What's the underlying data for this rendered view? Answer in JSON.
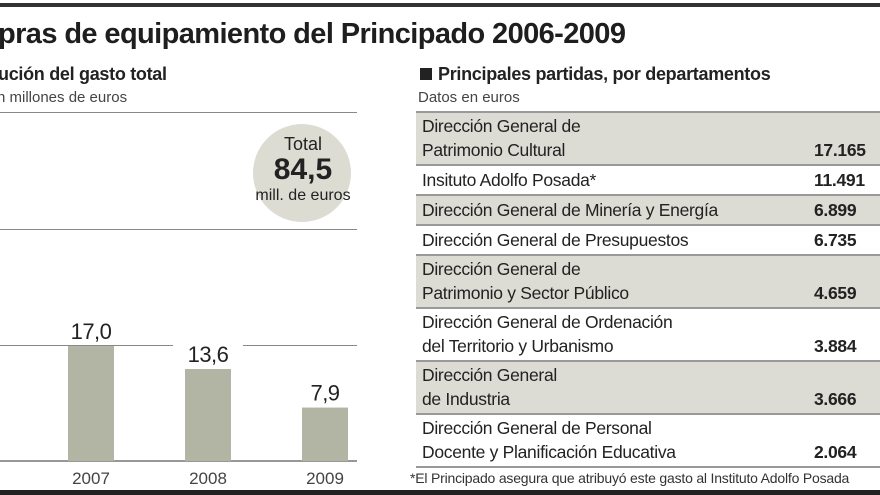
{
  "title": "pras de equipamiento del Principado 2006-2009",
  "left": {
    "heading": "ución del gasto total",
    "unit": "n millones de euros",
    "total": {
      "label": "Total",
      "value": "84,5",
      "unit": "mill. de euros"
    }
  },
  "chart_data": {
    "type": "bar",
    "title": "ución del gasto total",
    "ylabel": "millones de euros",
    "categories": [
      "2007",
      "2008",
      "2009"
    ],
    "values": [
      17.0,
      13.6,
      7.9
    ],
    "value_labels": [
      "17,0",
      "13,6",
      "7,9"
    ],
    "ylim": [
      0,
      51.6
    ]
  },
  "right": {
    "heading": "Principales partidas, por departamentos",
    "unit": "Datos en euros",
    "rows": [
      {
        "name": "Dirección General de\nPatrimonio Cultural",
        "value": "17.165"
      },
      {
        "name": "Insituto Adolfo Posada*",
        "value": "11.491"
      },
      {
        "name": "Dirección General de Minería y Energía",
        "value": "6.899"
      },
      {
        "name": "Dirección General de Presupuestos",
        "value": "6.735"
      },
      {
        "name": "Dirección General de\nPatrimonio y Sector Público",
        "value": "4.659"
      },
      {
        "name": "Dirección General de Ordenación\ndel Territorio y Urbanismo",
        "value": "3.884"
      },
      {
        "name": "Dirección General\nde Industria",
        "value": "3.666"
      },
      {
        "name": "Dirección General de Personal\nDocente y Planificación Educativa",
        "value": "2.064"
      }
    ],
    "footnote": "*El Principado asegura que atribuyó este gasto al Instituto Adolfo Posada"
  },
  "colors": {
    "bar": "#b3b5a4",
    "circle": "#dcdcd3",
    "row_shade": "#dcdcd4"
  }
}
